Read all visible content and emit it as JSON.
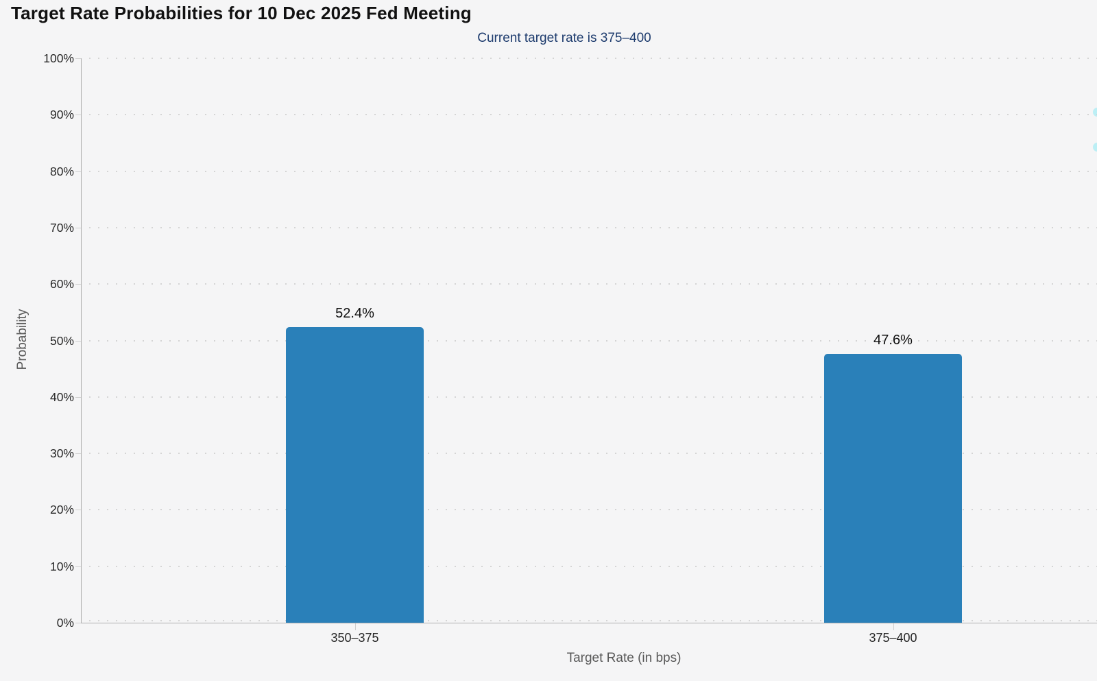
{
  "chart_data": {
    "type": "bar",
    "title": "Target Rate Probabilities for 10 Dec 2025 Fed Meeting",
    "subtitle": "Current target rate is 375–400",
    "xlabel": "Target Rate (in bps)",
    "ylabel": "Probability",
    "categories": [
      "350–375",
      "375–400"
    ],
    "values": [
      52.4,
      47.6
    ],
    "value_labels": [
      "52.4%",
      "47.6%"
    ],
    "ylim": [
      0,
      100
    ],
    "ytick_step": 10,
    "ytick_labels": [
      "0%",
      "10%",
      "20%",
      "30%",
      "40%",
      "50%",
      "60%",
      "70%",
      "80%",
      "90%",
      "100%"
    ],
    "grid": "horizontal-dotted",
    "legend_position": "none",
    "bar_color": "#2a80b9"
  },
  "colors": {
    "background": "#f5f5f6",
    "bar": "#2a80b9",
    "title": "#111111",
    "subtitle": "#1e3c6e",
    "axis": "#adadad",
    "grid_dot": "#d4d4d4",
    "tick_label": "#262626",
    "axis_title": "#585858",
    "edge_artifact": "#b2edf4"
  }
}
